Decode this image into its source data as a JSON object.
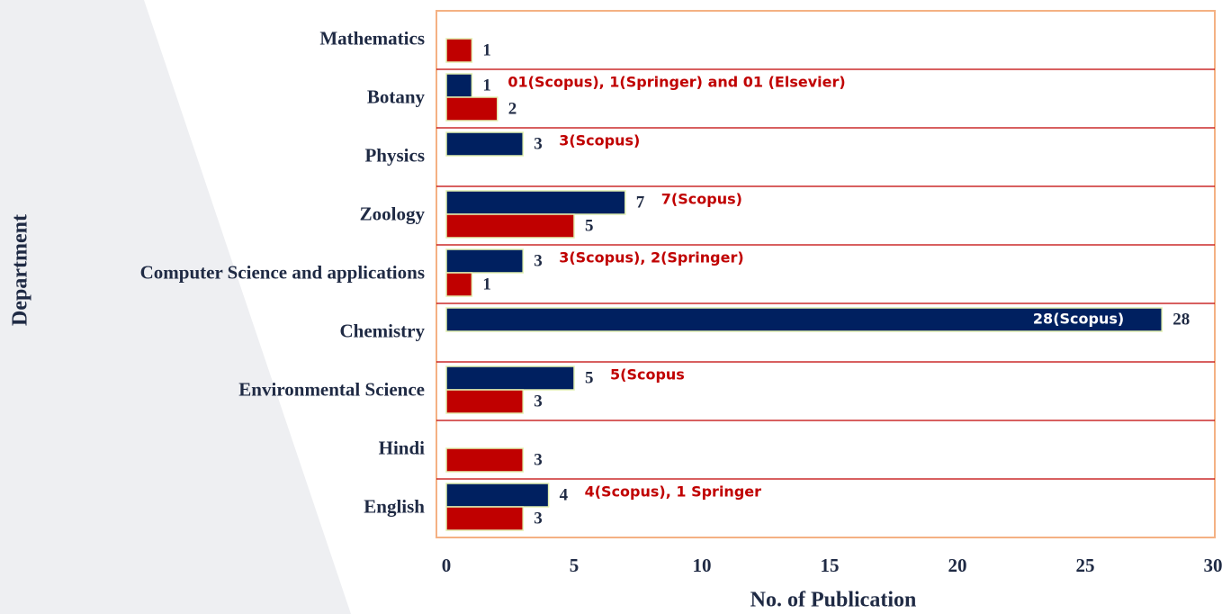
{
  "chart_data": {
    "type": "hbar",
    "categories": [
      "Mathematics",
      "Botany",
      "Physics",
      "Zoology",
      "Computer Science and applications",
      "Chemistry",
      "Environmental Science",
      "Hindi",
      "English"
    ],
    "series": [
      {
        "color": "#002060",
        "values": [
          null,
          1,
          3,
          7,
          3,
          28,
          5,
          null,
          4
        ]
      },
      {
        "color": "#c00000",
        "values": [
          1,
          2,
          null,
          5,
          1,
          null,
          3,
          3,
          3
        ]
      }
    ],
    "annotations": [
      null,
      "01(Scopus), 1(Springer) and 01 (Elsevier)",
      "3(Scopus)",
      "7(Scopus)",
      "3(Scopus), 2(Springer)",
      "28(Scopus)",
      "5(Scopus",
      null,
      "4(Scopus), 1 Springer"
    ],
    "xlim": [
      0,
      30
    ],
    "xticks": [
      0,
      5,
      10,
      15,
      20,
      25,
      30
    ],
    "xlabel": "No. of Publication",
    "ylabel": "Department"
  }
}
